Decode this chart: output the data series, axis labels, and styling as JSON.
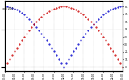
{
  "title": "Solar PV/Inverter Performance  Sun Altitude Angle & Sun Incidence Angle on PV Panels",
  "title2": "Local 2010 ---",
  "background_color": "#ffffff",
  "grid_color": "#aaaaaa",
  "blue_color": "#0000cc",
  "red_color": "#cc0000",
  "n_points": 49,
  "y_right_ticks": [
    0,
    10,
    20,
    30,
    40,
    50,
    60,
    70,
    80
  ],
  "y_right_labels": [
    "0",
    "10.",
    "20.",
    "30.",
    "40.",
    "50.",
    "60.",
    "70.",
    "80."
  ],
  "x_tick_labels": [
    "00:00",
    "02:00",
    "04:00",
    "06:00",
    "08:00",
    "10:00",
    "12:00",
    "14:00",
    "16:00",
    "18:00",
    "20:00",
    "22:00",
    "00:00"
  ],
  "ylim": [
    -5,
    88
  ],
  "xlim": [
    0,
    48
  ]
}
